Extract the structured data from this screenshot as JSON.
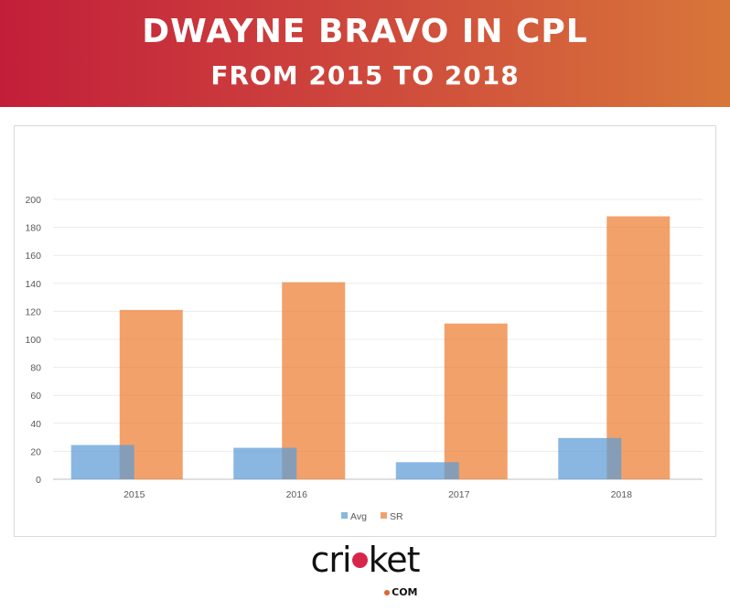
{
  "header": {
    "title": "DWAYNE BRAVO IN CPL",
    "subtitle": "FROM 2015 TO 2018"
  },
  "chart_data": {
    "type": "bar",
    "categories": [
      "2015",
      "2016",
      "2017",
      "2018"
    ],
    "series": [
      {
        "name": "Avg",
        "values": [
          24.5,
          22.5,
          12.2,
          29.5
        ],
        "color": "#5b9bd5"
      },
      {
        "name": "SR",
        "values": [
          121.0,
          140.8,
          111.3,
          187.9
        ],
        "color": "#ed7d31"
      }
    ],
    "ylim": [
      0,
      200
    ],
    "yticks": [
      0,
      20,
      40,
      60,
      80,
      100,
      120,
      140,
      160,
      180,
      200
    ],
    "grid": true,
    "legend_position": "bottom",
    "xlabel": "",
    "ylabel": ""
  },
  "logo": {
    "text_before": "cri",
    "text_after": "ket",
    "suffix": "COM"
  }
}
